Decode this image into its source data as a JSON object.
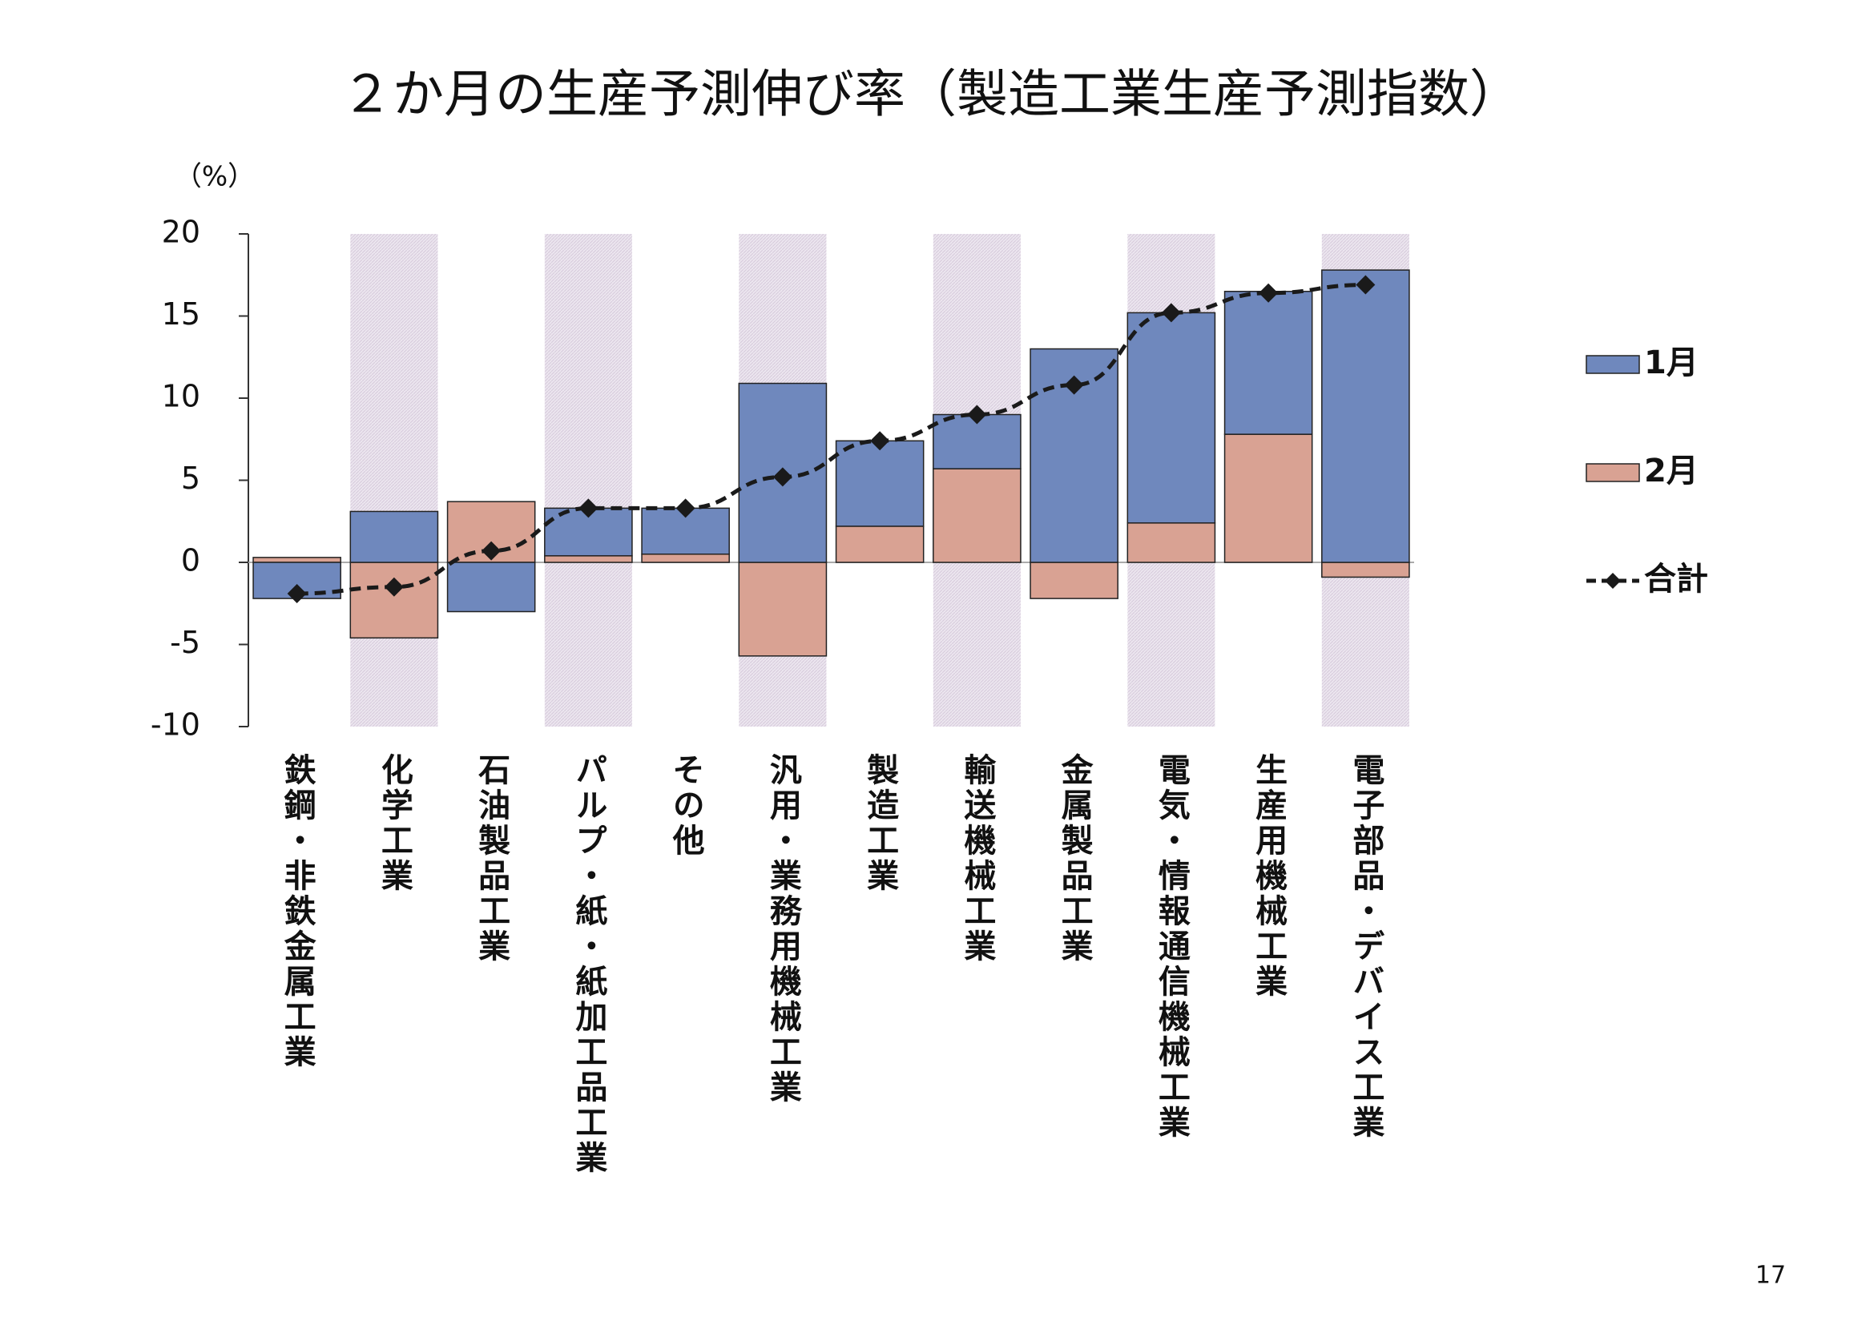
{
  "chart_data": {
    "type": "bar",
    "stacked": true,
    "title": "２か月の生産予測伸び率（製造工業生産予測指数）",
    "y_label": "（%）",
    "categories": [
      "鉄鋼・非鉄金属工業",
      "化学工業",
      "石油製品工業",
      "パルプ・紙・紙加工品工業",
      "その他",
      "汎用・業務用機械工業",
      "製造工業",
      "輸送機械工業",
      "金属製品工業",
      "電気・情報通信機械工業",
      "生産用機械工業",
      "電子部品・デバイス工業"
    ],
    "series": [
      {
        "name": "1月",
        "type": "bar",
        "color": "#6f88bd",
        "values": [
          -2.2,
          3.1,
          -3.0,
          2.9,
          2.8,
          10.9,
          5.2,
          3.3,
          13.0,
          12.8,
          8.7,
          17.8
        ]
      },
      {
        "name": "2月",
        "type": "bar",
        "color": "#d9a293",
        "values": [
          0.3,
          -4.6,
          3.7,
          0.4,
          0.5,
          -5.7,
          2.2,
          5.7,
          -2.2,
          2.4,
          7.8,
          -0.9
        ]
      },
      {
        "name": "合計",
        "type": "line",
        "color": "#1a1a1a",
        "values": [
          -1.9,
          -1.5,
          0.7,
          3.3,
          3.3,
          5.2,
          7.4,
          9.0,
          10.8,
          15.2,
          16.4,
          16.9
        ]
      }
    ],
    "ylim": [
      -10,
      20
    ],
    "yticks": [
      -10,
      -5,
      0,
      5,
      10,
      15,
      20
    ],
    "legend": "right",
    "page_number": "17"
  }
}
